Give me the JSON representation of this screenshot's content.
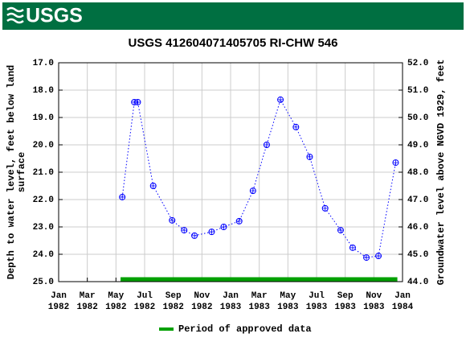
{
  "header": {
    "logo": "USGS"
  },
  "chart_data": {
    "type": "line",
    "title": "USGS 412604071405705 RI-CHW  546",
    "ylabel": "Depth to water level, feet below land surface",
    "y2label": "Groundwater level above NGVD 1929, feet",
    "xlim": [
      1982,
      1984
    ],
    "xticks": [
      {
        "value": 1982.0,
        "label": "Jan 1982"
      },
      {
        "value": 1982.1667,
        "label": "Mar 1982"
      },
      {
        "value": 1982.3333,
        "label": "May 1982"
      },
      {
        "value": 1982.5,
        "label": "Jul 1982"
      },
      {
        "value": 1982.6667,
        "label": "Sep 1982"
      },
      {
        "value": 1982.8333,
        "label": "Nov 1982"
      },
      {
        "value": 1983.0,
        "label": "Jan 1983"
      },
      {
        "value": 1983.1667,
        "label": "Mar 1983"
      },
      {
        "value": 1983.3333,
        "label": "May 1983"
      },
      {
        "value": 1983.5,
        "label": "Jul 1983"
      },
      {
        "value": 1983.6667,
        "label": "Sep 1983"
      },
      {
        "value": 1983.8333,
        "label": "Nov 1983"
      },
      {
        "value": 1984.0,
        "label": "Jan 1984"
      }
    ],
    "ylim": [
      25,
      17
    ],
    "yticks": [
      {
        "value": 17,
        "label": "17.0"
      },
      {
        "value": 18,
        "label": "18.0"
      },
      {
        "value": 19,
        "label": "19.0"
      },
      {
        "value": 20,
        "label": "20.0"
      },
      {
        "value": 21,
        "label": "21.0"
      },
      {
        "value": 22,
        "label": "22.0"
      },
      {
        "value": 23,
        "label": "23.0"
      },
      {
        "value": 24,
        "label": "24.0"
      },
      {
        "value": 25,
        "label": "25.0"
      }
    ],
    "y2lim": [
      44,
      52
    ],
    "y2ticks": [
      {
        "value": 52,
        "label": "52.0"
      },
      {
        "value": 51,
        "label": "51.0"
      },
      {
        "value": 50,
        "label": "50.0"
      },
      {
        "value": 49,
        "label": "49.0"
      },
      {
        "value": 48,
        "label": "48.0"
      },
      {
        "value": 47,
        "label": "47.0"
      },
      {
        "value": 46,
        "label": "46.0"
      },
      {
        "value": 45,
        "label": "45.0"
      },
      {
        "value": 44,
        "label": "44.0"
      }
    ],
    "grid": true,
    "series": [
      {
        "color": "#0000ff",
        "x": [
          1982.37,
          1982.44,
          1982.46,
          1982.55,
          1982.66,
          1982.73,
          1982.79,
          1982.89,
          1982.96,
          1983.05,
          1983.13,
          1983.21,
          1983.29,
          1983.38,
          1983.46,
          1983.55,
          1983.64,
          1983.71,
          1983.79,
          1983.86,
          1983.96
        ],
        "values": [
          21.91,
          18.44,
          18.44,
          21.5,
          22.76,
          23.12,
          23.32,
          23.18,
          23.0,
          22.79,
          21.68,
          20.0,
          18.35,
          19.35,
          20.44,
          22.32,
          23.12,
          23.76,
          24.12,
          24.06,
          20.65
        ]
      }
    ],
    "approved_period": {
      "name": "Period of approved data",
      "color": "#00a000",
      "x": [
        1982.36,
        1983.97
      ]
    }
  }
}
